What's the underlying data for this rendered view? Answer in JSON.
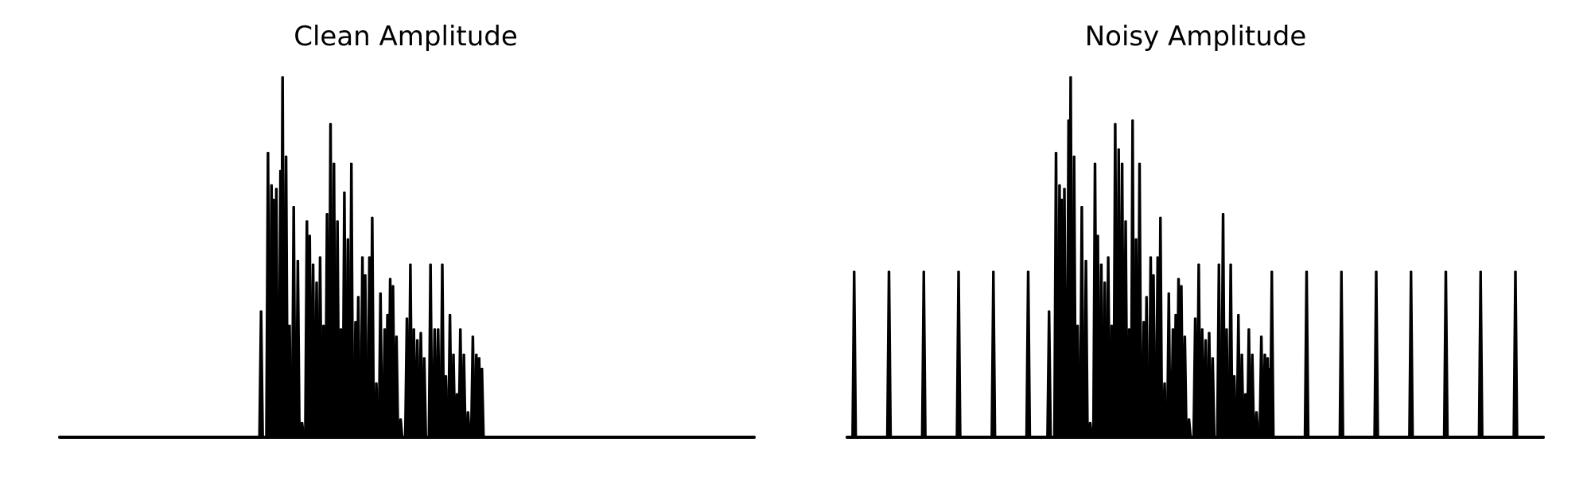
{
  "colors": {
    "line": "#000000",
    "background": "#ffffff"
  },
  "chart_data": [
    {
      "type": "line",
      "title": "Clean Amplitude",
      "xlabel": "",
      "ylabel": "",
      "axes_visible": false,
      "grid": false,
      "legend": "none",
      "xlim": [
        0,
        1
      ],
      "ylim": [
        0,
        1
      ],
      "peaks": [
        [
          0.29,
          0.35
        ],
        [
          0.3,
          0.79
        ],
        [
          0.305,
          0.7
        ],
        [
          0.308,
          0.66
        ],
        [
          0.312,
          0.69
        ],
        [
          0.318,
          0.74
        ],
        [
          0.321,
          1.0
        ],
        [
          0.326,
          0.78
        ],
        [
          0.331,
          0.31
        ],
        [
          0.337,
          0.64
        ],
        [
          0.343,
          0.49
        ],
        [
          0.349,
          0.04
        ],
        [
          0.356,
          0.6
        ],
        [
          0.36,
          0.56
        ],
        [
          0.365,
          0.48
        ],
        [
          0.37,
          0.43
        ],
        [
          0.375,
          0.5
        ],
        [
          0.38,
          0.31
        ],
        [
          0.385,
          0.62
        ],
        [
          0.39,
          0.87
        ],
        [
          0.395,
          0.76
        ],
        [
          0.4,
          0.6
        ],
        [
          0.405,
          0.3
        ],
        [
          0.41,
          0.68
        ],
        [
          0.415,
          0.55
        ],
        [
          0.42,
          0.76
        ],
        [
          0.426,
          0.32
        ],
        [
          0.43,
          0.39
        ],
        [
          0.436,
          0.5
        ],
        [
          0.44,
          0.45
        ],
        [
          0.446,
          0.5
        ],
        [
          0.45,
          0.61
        ],
        [
          0.456,
          0.15
        ],
        [
          0.462,
          0.4
        ],
        [
          0.468,
          0.3
        ],
        [
          0.472,
          0.34
        ],
        [
          0.476,
          0.44
        ],
        [
          0.48,
          0.42
        ],
        [
          0.485,
          0.28
        ],
        [
          0.491,
          0.05
        ],
        [
          0.5,
          0.33
        ],
        [
          0.505,
          0.48
        ],
        [
          0.51,
          0.3
        ],
        [
          0.515,
          0.27
        ],
        [
          0.52,
          0.29
        ],
        [
          0.525,
          0.22
        ],
        [
          0.534,
          0.48
        ],
        [
          0.54,
          0.3
        ],
        [
          0.545,
          0.3
        ],
        [
          0.551,
          0.48
        ],
        [
          0.556,
          0.17
        ],
        [
          0.562,
          0.34
        ],
        [
          0.567,
          0.23
        ],
        [
          0.572,
          0.12
        ],
        [
          0.577,
          0.3
        ],
        [
          0.582,
          0.23
        ],
        [
          0.588,
          0.07
        ],
        [
          0.595,
          0.28
        ],
        [
          0.6,
          0.23
        ],
        [
          0.604,
          0.22
        ],
        [
          0.608,
          0.19
        ]
      ]
    },
    {
      "type": "line",
      "title": "Noisy Amplitude",
      "xlabel": "",
      "ylabel": "",
      "axes_visible": false,
      "grid": false,
      "legend": "none",
      "xlim": [
        0,
        1
      ],
      "ylim": [
        0,
        1
      ],
      "peaks": [
        [
          0.01,
          0.46
        ],
        [
          0.06,
          0.46
        ],
        [
          0.11,
          0.46
        ],
        [
          0.16,
          0.46
        ],
        [
          0.21,
          0.46
        ],
        [
          0.26,
          0.46
        ],
        [
          0.29,
          0.35
        ],
        [
          0.3,
          0.79
        ],
        [
          0.305,
          0.7
        ],
        [
          0.308,
          0.66
        ],
        [
          0.312,
          0.69
        ],
        [
          0.318,
          0.88
        ],
        [
          0.321,
          1.0
        ],
        [
          0.326,
          0.78
        ],
        [
          0.331,
          0.31
        ],
        [
          0.337,
          0.64
        ],
        [
          0.343,
          0.49
        ],
        [
          0.349,
          0.04
        ],
        [
          0.356,
          0.76
        ],
        [
          0.36,
          0.56
        ],
        [
          0.365,
          0.48
        ],
        [
          0.37,
          0.43
        ],
        [
          0.375,
          0.5
        ],
        [
          0.38,
          0.31
        ],
        [
          0.385,
          0.87
        ],
        [
          0.39,
          0.8
        ],
        [
          0.395,
          0.76
        ],
        [
          0.4,
          0.6
        ],
        [
          0.405,
          0.3
        ],
        [
          0.41,
          0.88
        ],
        [
          0.415,
          0.55
        ],
        [
          0.42,
          0.76
        ],
        [
          0.426,
          0.32
        ],
        [
          0.43,
          0.39
        ],
        [
          0.436,
          0.5
        ],
        [
          0.44,
          0.45
        ],
        [
          0.446,
          0.5
        ],
        [
          0.45,
          0.61
        ],
        [
          0.456,
          0.15
        ],
        [
          0.462,
          0.4
        ],
        [
          0.468,
          0.3
        ],
        [
          0.472,
          0.34
        ],
        [
          0.476,
          0.44
        ],
        [
          0.48,
          0.42
        ],
        [
          0.485,
          0.28
        ],
        [
          0.491,
          0.05
        ],
        [
          0.5,
          0.33
        ],
        [
          0.505,
          0.48
        ],
        [
          0.51,
          0.3
        ],
        [
          0.515,
          0.27
        ],
        [
          0.52,
          0.29
        ],
        [
          0.525,
          0.22
        ],
        [
          0.534,
          0.48
        ],
        [
          0.54,
          0.62
        ],
        [
          0.545,
          0.3
        ],
        [
          0.551,
          0.48
        ],
        [
          0.556,
          0.17
        ],
        [
          0.562,
          0.34
        ],
        [
          0.567,
          0.23
        ],
        [
          0.572,
          0.12
        ],
        [
          0.577,
          0.3
        ],
        [
          0.582,
          0.23
        ],
        [
          0.588,
          0.07
        ],
        [
          0.595,
          0.28
        ],
        [
          0.6,
          0.23
        ],
        [
          0.604,
          0.22
        ],
        [
          0.608,
          0.19
        ],
        [
          0.61,
          0.46
        ],
        [
          0.66,
          0.46
        ],
        [
          0.71,
          0.46
        ],
        [
          0.76,
          0.46
        ],
        [
          0.81,
          0.46
        ],
        [
          0.86,
          0.46
        ],
        [
          0.91,
          0.46
        ],
        [
          0.96,
          0.46
        ]
      ]
    }
  ]
}
